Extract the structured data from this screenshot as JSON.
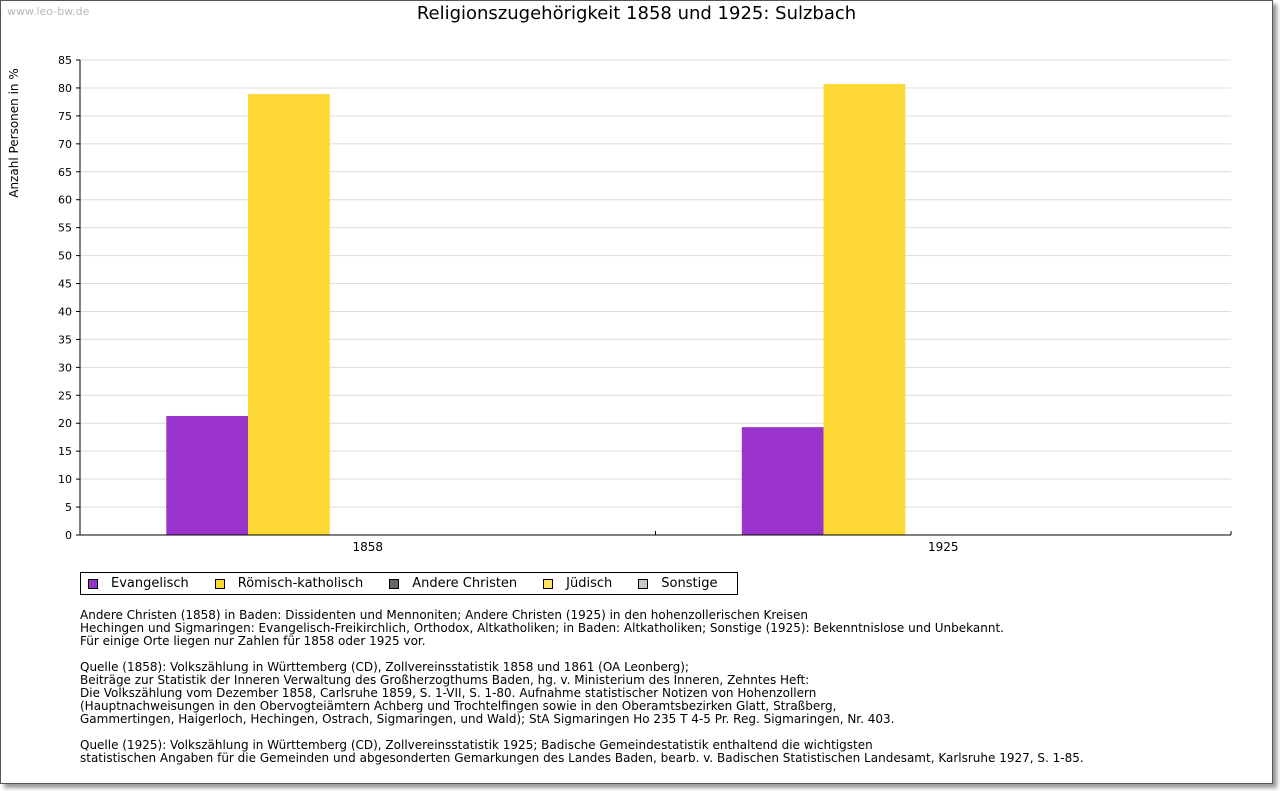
{
  "watermark": "www.leo-bw.de",
  "chart_data": {
    "type": "bar",
    "title": "Religionszugehörigkeit 1858 und 1925: Sulzbach",
    "xlabel": "",
    "ylabel": "Anzahl Personen in %",
    "categories": [
      "1858",
      "1925"
    ],
    "ylim": [
      0,
      85
    ],
    "yticks": [
      0,
      5,
      10,
      15,
      20,
      25,
      30,
      35,
      40,
      45,
      50,
      55,
      60,
      65,
      70,
      75,
      80,
      85
    ],
    "grid": true,
    "series": [
      {
        "name": "Evangelisch",
        "color": "#9933cc",
        "values": [
          21.3,
          19.3
        ]
      },
      {
        "name": "Römisch-katholisch",
        "color": "#fdd835",
        "values": [
          78.9,
          80.7
        ]
      },
      {
        "name": "Andere Christen",
        "color": "#666666",
        "values": [
          0,
          0
        ]
      },
      {
        "name": "Jüdisch",
        "color": "#ffe066",
        "values": [
          0,
          0
        ]
      },
      {
        "name": "Sonstige",
        "color": "#c8c8c8",
        "values": [
          0,
          0
        ]
      }
    ],
    "legend": "bottom-left"
  },
  "notes": {
    "block1": [
      "Andere Christen (1858) in Baden: Dissidenten und Mennoniten; Andere Christen (1925) in den hohenzollerischen Kreisen",
      "Hechingen und Sigmaringen: Evangelisch-Freikirchlich, Orthodox, Altkatholiken; in Baden: Altkatholiken; Sonstige (1925): Bekenntnislose und Unbekannt.",
      "Für einige Orte liegen nur Zahlen für 1858 oder 1925 vor."
    ],
    "block2": [
      "Quelle (1858): Volkszählung in Württemberg (CD), Zollvereinsstatistik 1858 und 1861 (OA Leonberg);",
      "Beiträge zur Statistik der Inneren Verwaltung des Großherzogthums Baden, hg. v. Ministerium des Inneren, Zehntes Heft:",
      "Die Volkszählung vom Dezember 1858, Carlsruhe 1859, S. 1-VII, S. 1-80. Aufnahme statistischer Notizen von Hohenzollern",
      "(Hauptnachweisungen in den Obervogteiämtern Achberg und Trochtelfingen sowie in den Oberamtsbezirken Glatt, Straßberg,",
      "Gammertingen, Haigerloch, Hechingen, Ostrach, Sigmaringen, und Wald); StA Sigmaringen Ho 235 T 4-5 Pr. Reg. Sigmaringen, Nr. 403."
    ],
    "block3": [
      "Quelle (1925): Volkszählung in Württemberg (CD), Zollvereinsstatistik 1925; Badische Gemeindestatistik enthaltend die wichtigsten",
      "statistischen Angaben für die Gemeinden und abgesonderten Gemarkungen des Landes Baden, bearb. v. Badischen Statistischen Landesamt, Karlsruhe 1927, S. 1-85."
    ]
  }
}
